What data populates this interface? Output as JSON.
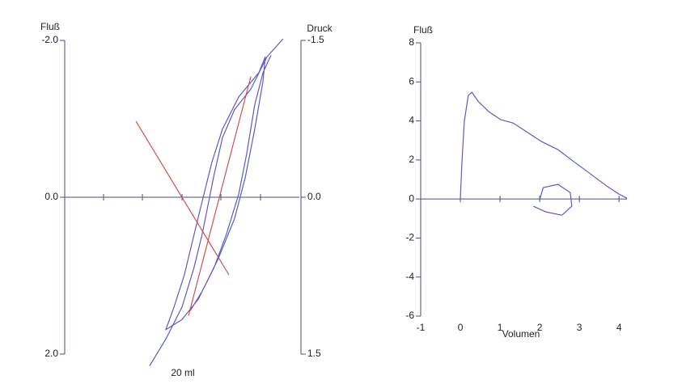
{
  "chart_data": [
    {
      "type": "line",
      "y_label": "Fluß",
      "y2_label": "Druck",
      "x_label": "20 ml",
      "xlim": [
        0,
        120
      ],
      "ylim": [
        -2,
        2
      ],
      "y_reversed": true,
      "yticks": [
        {
          "value": -2,
          "label": "-2.0"
        },
        {
          "value": 0,
          "label": "0.0"
        },
        {
          "value": 2,
          "label": "2.0"
        }
      ],
      "y2lim": [
        -1.5,
        1.5
      ],
      "y2ticks": [
        {
          "value": -1.5,
          "label": "-1.5"
        },
        {
          "value": 0,
          "label": "0.0"
        },
        {
          "value": 1.5,
          "label": "1.5"
        }
      ],
      "series": [
        {
          "color": "#5a5ac8",
          "x": [
            43.4,
            51.7,
            60.0,
            66.2,
            70.3,
            73.6,
            76.5,
            80.7,
            86.9,
            95.2,
            103.4,
            111.7
          ],
          "values": [
            2.15,
            1.81,
            1.4,
            0.89,
            0.47,
            0.06,
            -0.3,
            -0.76,
            -1.12,
            -1.38,
            -1.79,
            -2.02
          ]
        },
        {
          "color": "#5a5ac8",
          "x": [
            105.5,
            101.4,
            97.2,
            93.1,
            89.0,
            82.7,
            76.5,
            68.3,
            60.0,
            51.7,
            55.9,
            61.2,
            66.2,
            71.2,
            75.3,
            80.7,
            89.0,
            99.3,
            102.6,
            101.4,
            97.2,
            92.3,
            86.9,
            78.6,
            70.3,
            64.1
          ],
          "values": [
            -1.81,
            -1.59,
            -1.18,
            -0.56,
            -0.04,
            0.47,
            0.89,
            1.3,
            1.56,
            1.69,
            1.4,
            0.99,
            0.47,
            -0.04,
            -0.45,
            -0.87,
            -1.28,
            -1.59,
            -1.79,
            -1.48,
            -0.87,
            -0.25,
            0.27,
            0.78,
            1.2,
            1.45
          ]
        },
        {
          "color": "#d05050",
          "x": [
            36.4,
            84.0
          ],
          "values": [
            -0.97,
            0.99
          ]
        },
        {
          "color": "#d05050",
          "x": [
            63.3,
            95.2
          ],
          "values": [
            1.51,
            -1.54
          ]
        }
      ]
    },
    {
      "type": "line",
      "y_label": "Fluß",
      "x_label": "Volumen",
      "xlim": [
        -1,
        4.2
      ],
      "ylim": [
        -6,
        8
      ],
      "xticks": [
        -1,
        0,
        1,
        2,
        3,
        4
      ],
      "yticks": [
        -6,
        -4,
        -2,
        0,
        2,
        4,
        6,
        8
      ],
      "series": [
        {
          "color": "#5a5ac8",
          "x": [
            0,
            0.04,
            0.1,
            0.2,
            0.29,
            0.45,
            0.72,
            1.02,
            1.33,
            1.64,
            2.05,
            2.46,
            2.87,
            3.28,
            3.69,
            4.0,
            4.2
          ],
          "values": [
            0,
            1.9,
            3.98,
            5.3,
            5.47,
            5.0,
            4.47,
            4.06,
            3.89,
            3.48,
            2.94,
            2.53,
            1.9,
            1.28,
            0.66,
            0.25,
            0.04
          ]
        },
        {
          "color": "#5a5ac8",
          "x": [
            1.84,
            2.15,
            2.56,
            2.81,
            2.77,
            2.46,
            2.09,
            2.01
          ],
          "values": [
            -0.37,
            -0.66,
            -0.83,
            -0.37,
            0.33,
            0.75,
            0.58,
            0.04
          ]
        }
      ]
    }
  ]
}
